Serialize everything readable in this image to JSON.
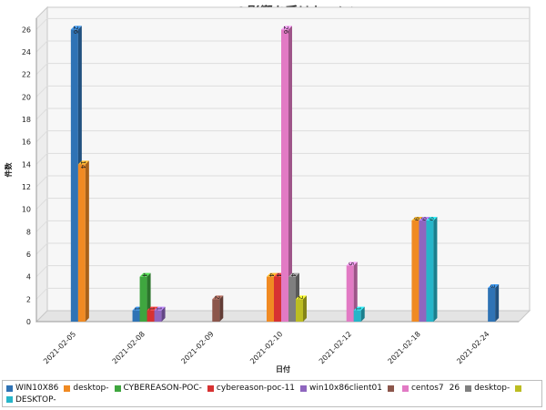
{
  "chart_data": {
    "type": "bar",
    "title": "MALOPの影響を受けたマシン",
    "xlabel": "日付",
    "ylabel": "件数",
    "ylim": [
      0,
      27
    ],
    "yticks": [
      0,
      2,
      4,
      6,
      8,
      10,
      12,
      14,
      16,
      18,
      20,
      22,
      24,
      26
    ],
    "categories": [
      "2021-02-05",
      "2021-02-08",
      "2021-02-09",
      "2021-02-10",
      "2021-02-12",
      "2021-02-18",
      "2021-02-24"
    ],
    "grid": true,
    "legend_position": "bottom",
    "series": [
      {
        "name": "WIN10X86",
        "color": "#2f73b5",
        "values": [
          26,
          1,
          null,
          null,
          null,
          null,
          3
        ]
      },
      {
        "name": "desktop-",
        "color": "#f08a23",
        "values": [
          14,
          null,
          null,
          4,
          null,
          9,
          null
        ]
      },
      {
        "name": "CYBEREASON-POC-",
        "color": "#3fa63f",
        "values": [
          null,
          4,
          null,
          null,
          null,
          null,
          null
        ]
      },
      {
        "name": "cybereason-poc-11",
        "color": "#d73232",
        "values": [
          null,
          1,
          null,
          4,
          null,
          null,
          null
        ]
      },
      {
        "name": "win10x86client01",
        "color": "#8f66bf",
        "values": [
          null,
          1,
          null,
          null,
          null,
          9,
          null
        ]
      },
      {
        "name": "",
        "color": "#8c564b",
        "values": [
          null,
          null,
          2,
          null,
          null,
          null,
          null
        ]
      },
      {
        "name": "centos7",
        "color": "#e27ac4",
        "values": [
          null,
          null,
          null,
          26,
          5,
          null,
          null
        ]
      },
      {
        "name": "desktop-",
        "color": "#7f7f7f",
        "values": [
          null,
          null,
          null,
          4,
          null,
          null,
          null
        ]
      },
      {
        "name": "",
        "color": "#bcbd22",
        "values": [
          null,
          null,
          null,
          2,
          null,
          null,
          null
        ]
      },
      {
        "name": "DESKTOP-",
        "color": "#26b5c9",
        "values": [
          null,
          null,
          null,
          null,
          1,
          9,
          null
        ]
      }
    ]
  },
  "legend": {
    "items": [
      {
        "label": "WIN10X86",
        "color": "#2f73b5"
      },
      {
        "label": "desktop-",
        "color": "#f08a23"
      },
      {
        "label": "CYBEREASON-POC-",
        "color": "#3fa63f"
      },
      {
        "label": "cybereason-poc-11",
        "color": "#d73232"
      },
      {
        "label": "win10x86client01",
        "color": "#8f66bf"
      },
      {
        "label": "",
        "color": "#8c564b"
      },
      {
        "label": "centos7",
        "color": "#e27ac4"
      },
      {
        "label": "26",
        "color": ""
      },
      {
        "label": "desktop-",
        "color": "#7f7f7f"
      },
      {
        "label": "",
        "color": "#bcbd22"
      },
      {
        "label": "DESKTOP-",
        "color": "#26b5c9"
      }
    ]
  }
}
